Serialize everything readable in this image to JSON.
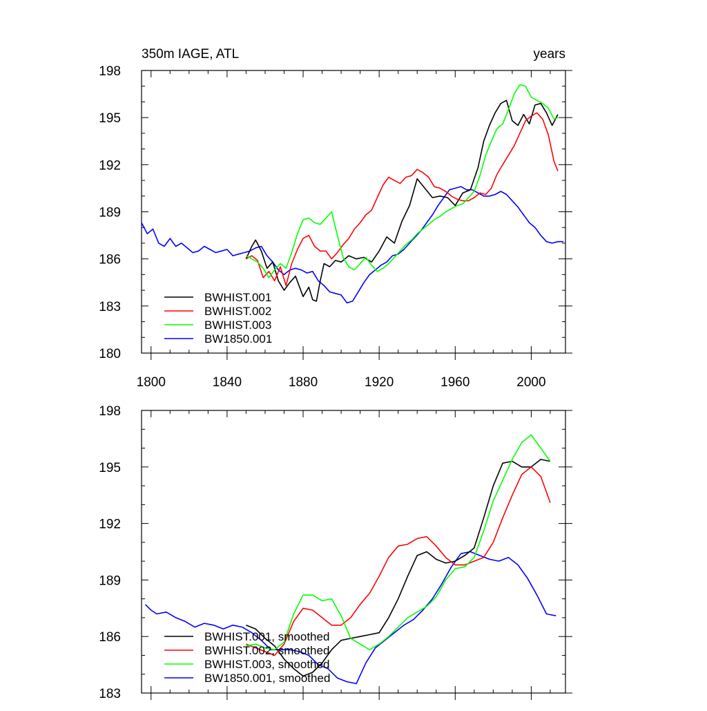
{
  "chart_data": [
    {
      "type": "line",
      "title_left": "350m IAGE, ATL",
      "title_right": "years",
      "xlim": [
        1795,
        2018
      ],
      "ylim": [
        180,
        198
      ],
      "xticks": [
        1800,
        1840,
        1880,
        1920,
        1960,
        2000
      ],
      "xtick_labels": [
        "1800",
        "1840",
        "1880",
        "1920",
        "1960",
        "2000"
      ],
      "yticks": [
        180,
        183,
        186,
        189,
        192,
        195,
        198
      ],
      "ytick_labels": [
        "180",
        "183",
        "186",
        "189",
        "192",
        "195",
        "198"
      ],
      "legend_position": "bottom-left",
      "series": [
        {
          "name": "BWHIST.001",
          "color": "#000000",
          "x": [
            1850,
            1853,
            1855,
            1858,
            1861,
            1864,
            1867,
            1870,
            1873,
            1876,
            1880,
            1883,
            1885,
            1887,
            1889,
            1891,
            1894,
            1897,
            1900,
            1904,
            1908,
            1912,
            1916,
            1920,
            1924,
            1928,
            1932,
            1936,
            1940,
            1944,
            1948,
            1952,
            1956,
            1960,
            1964,
            1968,
            1972,
            1975,
            1978,
            1981,
            1984,
            1987,
            1990,
            1993,
            1996,
            1999,
            2002,
            2005,
            2008,
            2011,
            2014
          ],
          "y": [
            186.0,
            186.8,
            187.2,
            186.5,
            185.4,
            185.8,
            184.6,
            184.0,
            184.5,
            184.9,
            183.6,
            184.2,
            183.4,
            183.3,
            184.6,
            185.7,
            185.5,
            185.9,
            185.8,
            186.2,
            186.0,
            186.1,
            185.8,
            186.5,
            187.4,
            187.0,
            188.4,
            189.4,
            191.1,
            190.5,
            189.9,
            190.0,
            189.9,
            189.4,
            190.2,
            190.4,
            191.8,
            193.5,
            194.5,
            195.3,
            195.9,
            196.1,
            194.8,
            194.5,
            195.2,
            194.6,
            195.8,
            195.9,
            195.3,
            194.5,
            195.2
          ]
        },
        {
          "name": "BWHIST.002",
          "color": "#ff0000",
          "x": [
            1850,
            1853,
            1856,
            1859,
            1862,
            1865,
            1868,
            1871,
            1874,
            1877,
            1880,
            1883,
            1886,
            1889,
            1892,
            1895,
            1898,
            1901,
            1904,
            1907,
            1910,
            1913,
            1916,
            1919,
            1922,
            1925,
            1928,
            1931,
            1934,
            1937,
            1940,
            1943,
            1946,
            1949,
            1952,
            1955,
            1958,
            1961,
            1964,
            1967,
            1970,
            1973,
            1976,
            1979,
            1982,
            1985,
            1988,
            1991,
            1994,
            1997,
            2000,
            2003,
            2006,
            2009,
            2012,
            2014
          ],
          "y": [
            186.0,
            186.2,
            185.9,
            184.8,
            185.2,
            184.6,
            185.5,
            184.3,
            185.7,
            186.6,
            187.3,
            187.5,
            186.8,
            186.5,
            186.5,
            186.0,
            186.4,
            186.9,
            187.3,
            187.9,
            188.3,
            188.8,
            189.1,
            189.9,
            190.7,
            191.2,
            191.0,
            190.8,
            191.2,
            191.3,
            191.7,
            191.5,
            191.2,
            190.6,
            190.5,
            190.3,
            190.0,
            189.8,
            189.7,
            189.7,
            189.9,
            190.2,
            190.1,
            190.5,
            191.4,
            192.0,
            192.6,
            193.2,
            194.0,
            194.8,
            195.1,
            195.3,
            194.9,
            193.9,
            192.2,
            191.6
          ]
        },
        {
          "name": "BWHIST.003",
          "color": "#00ff00",
          "x": [
            1850,
            1853,
            1856,
            1859,
            1862,
            1865,
            1868,
            1871,
            1874,
            1877,
            1880,
            1883,
            1886,
            1889,
            1892,
            1895,
            1898,
            1901,
            1904,
            1907,
            1910,
            1913,
            1916,
            1919,
            1922,
            1925,
            1928,
            1931,
            1934,
            1937,
            1940,
            1943,
            1946,
            1949,
            1952,
            1955,
            1958,
            1961,
            1964,
            1967,
            1970,
            1973,
            1976,
            1979,
            1982,
            1985,
            1988,
            1991,
            1994,
            1997,
            2000,
            2003,
            2006,
            2009,
            2012,
            2014
          ],
          "y": [
            186.2,
            186.0,
            185.8,
            185.4,
            184.8,
            185.3,
            185.7,
            185.4,
            186.4,
            187.6,
            188.5,
            188.6,
            188.3,
            188.2,
            188.6,
            189.0,
            187.5,
            186.1,
            185.5,
            185.3,
            185.7,
            186.1,
            185.6,
            185.2,
            185.4,
            185.7,
            186.1,
            186.5,
            186.9,
            187.2,
            187.6,
            187.9,
            188.2,
            188.5,
            188.7,
            189.0,
            189.2,
            189.4,
            189.5,
            189.9,
            190.3,
            191.3,
            192.6,
            193.5,
            194.3,
            194.6,
            195.5,
            196.5,
            197.1,
            197.0,
            196.3,
            196.1,
            195.9,
            195.6,
            194.9,
            195.0
          ]
        },
        {
          "name": "BW1850.001",
          "color": "#0000ff",
          "x": [
            1795,
            1798,
            1801,
            1804,
            1807,
            1810,
            1813,
            1816,
            1819,
            1822,
            1825,
            1828,
            1831,
            1834,
            1837,
            1840,
            1843,
            1846,
            1849,
            1852,
            1855,
            1858,
            1861,
            1864,
            1867,
            1870,
            1873,
            1876,
            1879,
            1882,
            1885,
            1888,
            1891,
            1894,
            1897,
            1900,
            1903,
            1906,
            1909,
            1912,
            1915,
            1918,
            1921,
            1924,
            1927,
            1930,
            1933,
            1936,
            1939,
            1942,
            1945,
            1948,
            1951,
            1954,
            1957,
            1960,
            1963,
            1966,
            1969,
            1972,
            1975,
            1978,
            1981,
            1984,
            1987,
            1990,
            1993,
            1996,
            1999,
            2002,
            2005,
            2008,
            2011,
            2014,
            2017
          ],
          "y": [
            188.3,
            187.6,
            187.9,
            187.0,
            186.8,
            187.3,
            186.8,
            187.0,
            186.7,
            186.4,
            186.5,
            186.8,
            186.6,
            186.4,
            186.5,
            186.6,
            186.2,
            186.3,
            186.4,
            186.5,
            186.7,
            186.8,
            186.2,
            185.8,
            185.3,
            185.0,
            185.3,
            185.4,
            185.3,
            185.1,
            185.2,
            184.6,
            184.3,
            183.9,
            183.8,
            183.7,
            183.2,
            183.3,
            183.9,
            184.5,
            185.0,
            185.3,
            185.6,
            185.8,
            186.2,
            186.3,
            186.6,
            187.0,
            187.4,
            187.8,
            188.3,
            188.8,
            189.4,
            189.9,
            190.4,
            190.5,
            190.6,
            190.4,
            190.4,
            190.2,
            190.0,
            190.0,
            190.1,
            190.3,
            190.1,
            189.7,
            189.3,
            188.8,
            188.3,
            188.0,
            187.5,
            187.1,
            187.0,
            187.1,
            187.1
          ]
        }
      ]
    },
    {
      "type": "line",
      "title_left": "",
      "title_right": "",
      "xlim": [
        1795,
        2018
      ],
      "ylim": [
        183,
        198
      ],
      "xticks": [
        1800,
        1840,
        1880,
        1920,
        1960,
        2000
      ],
      "xtick_labels": [],
      "yticks": [
        183,
        186,
        189,
        192,
        195,
        198
      ],
      "ytick_labels": [
        "183",
        "186",
        "189",
        "192",
        "195",
        "198"
      ],
      "legend_position": "bottom-left",
      "series": [
        {
          "name": "BWHIST.001, smoothed",
          "color": "#000000",
          "x": [
            1850,
            1855,
            1860,
            1865,
            1870,
            1875,
            1880,
            1885,
            1890,
            1895,
            1900,
            1905,
            1910,
            1915,
            1920,
            1925,
            1930,
            1935,
            1940,
            1945,
            1950,
            1955,
            1960,
            1965,
            1970,
            1975,
            1980,
            1985,
            1990,
            1995,
            2000,
            2005,
            2010
          ],
          "y": [
            186.6,
            186.4,
            185.9,
            185.5,
            184.8,
            184.3,
            183.9,
            184.1,
            184.6,
            185.3,
            185.8,
            185.9,
            186.0,
            186.1,
            186.2,
            187.0,
            188.0,
            189.2,
            190.3,
            190.5,
            190.1,
            189.9,
            190.0,
            190.3,
            190.7,
            192.3,
            194.0,
            195.2,
            195.3,
            195.0,
            195.0,
            195.4,
            195.3
          ]
        },
        {
          "name": "BWHIST.002, smoothed",
          "color": "#ff0000",
          "x": [
            1850,
            1855,
            1860,
            1865,
            1870,
            1875,
            1880,
            1885,
            1890,
            1895,
            1900,
            1905,
            1910,
            1915,
            1920,
            1925,
            1930,
            1935,
            1940,
            1945,
            1950,
            1955,
            1960,
            1965,
            1970,
            1975,
            1980,
            1985,
            1990,
            1995,
            2000,
            2005,
            2010
          ],
          "y": [
            185.6,
            185.4,
            185.2,
            185.0,
            185.6,
            186.8,
            187.5,
            187.4,
            187.0,
            186.6,
            186.6,
            187.0,
            187.7,
            188.3,
            189.2,
            190.2,
            190.8,
            190.9,
            191.2,
            191.3,
            190.8,
            190.2,
            189.8,
            189.8,
            190.0,
            190.2,
            191.0,
            192.3,
            193.5,
            194.6,
            195.0,
            194.5,
            193.1
          ]
        },
        {
          "name": "BWHIST.003, smoothed",
          "color": "#00ff00",
          "x": [
            1850,
            1855,
            1860,
            1865,
            1870,
            1875,
            1880,
            1885,
            1890,
            1895,
            1900,
            1905,
            1910,
            1915,
            1920,
            1925,
            1930,
            1935,
            1940,
            1945,
            1950,
            1955,
            1960,
            1965,
            1970,
            1975,
            1980,
            1985,
            1990,
            1995,
            2000,
            2005,
            2010
          ],
          "y": [
            185.5,
            185.6,
            185.4,
            185.3,
            185.7,
            187.2,
            188.2,
            188.2,
            187.9,
            188.0,
            187.1,
            185.9,
            185.6,
            185.3,
            185.6,
            186.0,
            186.5,
            187.0,
            187.3,
            187.6,
            188.1,
            189.0,
            189.6,
            189.7,
            190.2,
            191.6,
            193.2,
            194.3,
            195.4,
            196.3,
            196.7,
            196.0,
            195.3
          ]
        },
        {
          "name": "BW1850.001, smoothed",
          "color": "#0000ff",
          "x": [
            1797,
            1800,
            1803,
            1808,
            1813,
            1818,
            1823,
            1828,
            1833,
            1838,
            1843,
            1848,
            1853,
            1858,
            1863,
            1868,
            1873,
            1878,
            1883,
            1888,
            1893,
            1898,
            1903,
            1908,
            1913,
            1918,
            1923,
            1928,
            1933,
            1938,
            1943,
            1948,
            1953,
            1958,
            1963,
            1968,
            1973,
            1978,
            1983,
            1988,
            1993,
            1998,
            2003,
            2008,
            2013
          ],
          "y": [
            187.7,
            187.4,
            187.2,
            187.3,
            187.0,
            186.8,
            186.5,
            186.7,
            186.6,
            186.4,
            186.6,
            186.5,
            186.2,
            185.8,
            185.3,
            185.3,
            185.3,
            185.2,
            185.0,
            184.5,
            184.3,
            183.8,
            183.6,
            183.5,
            184.6,
            185.4,
            185.8,
            186.2,
            186.6,
            186.9,
            187.4,
            188.0,
            188.8,
            189.7,
            190.4,
            190.5,
            190.3,
            190.1,
            190.0,
            190.2,
            189.8,
            189.1,
            188.2,
            187.2,
            187.1
          ]
        }
      ]
    }
  ]
}
